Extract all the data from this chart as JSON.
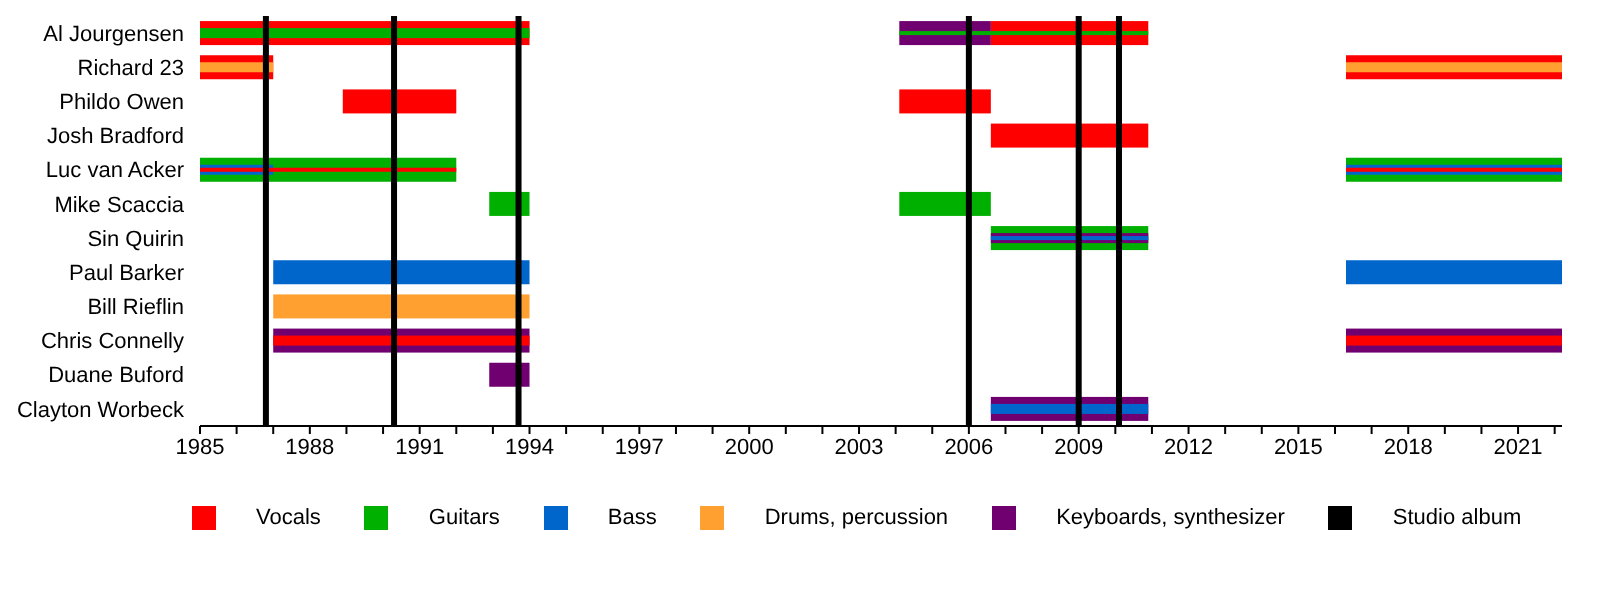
{
  "chart_data": {
    "type": "bar",
    "orientation": "horizontal",
    "legend": "bottom",
    "categories": [
      "Al Jourgensen",
      "Richard 23",
      "Phildo Owen",
      "Josh Bradford",
      "Luc van Acker",
      "Mike Scaccia",
      "Sin Quirin",
      "Paul Barker",
      "Bill Rieflin",
      "Chris Connelly",
      "Duane Buford",
      "Clayton Worbeck"
    ],
    "xlim": [
      1985,
      2022.2
    ],
    "xticks": [
      1985,
      {
        "value": 1986,
        "label": null
      },
      {
        "value": 1987,
        "label": null
      },
      1988,
      {
        "value": 1989,
        "label": null
      },
      {
        "value": 1990,
        "label": null
      },
      1991,
      {
        "value": 1992,
        "label": null
      },
      {
        "value": 1993,
        "label": null
      },
      1994,
      {
        "value": 1995,
        "label": null
      },
      {
        "value": 1996,
        "label": null
      },
      1997,
      {
        "value": 1998,
        "label": null
      },
      {
        "value": 1999,
        "label": null
      },
      2000,
      {
        "value": 2001,
        "label": null
      },
      {
        "value": 2002,
        "label": null
      },
      2003,
      {
        "value": 2004,
        "label": null
      },
      {
        "value": 2005,
        "label": null
      },
      2006,
      {
        "value": 2007,
        "label": null
      },
      {
        "value": 2008,
        "label": null
      },
      2009,
      {
        "value": 2010,
        "label": null
      },
      {
        "value": 2011,
        "label": null
      },
      2012,
      {
        "value": 2013,
        "label": null
      },
      {
        "value": 2014,
        "label": null
      },
      2015,
      {
        "value": 2016,
        "label": null
      },
      {
        "value": 2017,
        "label": null
      },
      2018,
      {
        "value": 2019,
        "label": null
      },
      {
        "value": 2020,
        "label": null
      },
      2021,
      {
        "value": 2022,
        "label": null
      }
    ],
    "series": [
      {
        "name": "Vocals",
        "color": "#ff0000",
        "base": [
          1985,
          1985,
          1988.9,
          2006.6,
          null,
          null,
          null,
          null,
          null,
          null,
          null,
          null
        ],
        "values": [
          9.0,
          2.0,
          3.1,
          4.3,
          null,
          null,
          null,
          null,
          null,
          null,
          null,
          null
        ]
      },
      {
        "color": "#ff0000",
        "base": [
          2006.6,
          2016.3,
          2004.1,
          null,
          null,
          null,
          null,
          null,
          null,
          null,
          null,
          null
        ],
        "values": [
          4.3,
          5.9,
          2.5,
          null,
          null,
          null,
          null,
          null,
          null,
          null,
          null,
          null
        ]
      },
      {
        "name": "Guitars",
        "color": "#00b000",
        "base": [
          null,
          null,
          null,
          null,
          1985,
          1992.9,
          2006.6,
          null,
          null,
          null,
          null,
          null
        ],
        "values": [
          null,
          null,
          null,
          null,
          7.0,
          1.1,
          4.3,
          null,
          null,
          null,
          null,
          null
        ]
      },
      {
        "color": "#00b000",
        "base": [
          null,
          null,
          null,
          null,
          2016.3,
          2004.1,
          null,
          null,
          null,
          null,
          null,
          null
        ],
        "values": [
          null,
          null,
          null,
          null,
          5.9,
          2.5,
          null,
          null,
          null,
          null,
          null,
          null
        ]
      },
      {
        "name": "Bass",
        "color": "#0066cc",
        "base": [
          null,
          null,
          null,
          null,
          null,
          null,
          null,
          1987,
          null,
          null,
          null,
          null
        ],
        "values": [
          null,
          null,
          null,
          null,
          null,
          null,
          null,
          7.0,
          null,
          null,
          null,
          null
        ]
      },
      {
        "color": "#0066cc",
        "base": [
          null,
          null,
          null,
          null,
          null,
          null,
          null,
          2016.3,
          null,
          null,
          null,
          null
        ],
        "values": [
          null,
          null,
          null,
          null,
          null,
          null,
          null,
          5.9,
          null,
          null,
          null,
          null
        ]
      },
      {
        "name": "Drums, percussion",
        "color": "#ffa030",
        "base": [
          null,
          null,
          null,
          null,
          null,
          null,
          null,
          null,
          1987,
          null,
          null,
          null
        ],
        "values": [
          null,
          null,
          null,
          null,
          null,
          null,
          null,
          null,
          7.0,
          null,
          null,
          null
        ]
      },
      {
        "name": "Keyboards, synthesizer",
        "color": "#700070",
        "base": [
          2004.1,
          null,
          null,
          null,
          null,
          null,
          null,
          null,
          null,
          1987,
          1992.9,
          2006.6
        ],
        "values": [
          2.5,
          null,
          null,
          null,
          null,
          null,
          null,
          null,
          null,
          7.0,
          1.1,
          4.3
        ]
      },
      {
        "color": "#700070",
        "base": [
          null,
          null,
          null,
          null,
          null,
          null,
          null,
          null,
          null,
          2016.3,
          null,
          null
        ],
        "values": [
          null,
          null,
          null,
          null,
          null,
          null,
          null,
          null,
          null,
          5.9,
          null,
          null
        ]
      },
      {
        "color": "#00b000",
        "base": [
          1985,
          null,
          null,
          null,
          null,
          null,
          null,
          null,
          null,
          null,
          null,
          null
        ],
        "values": [
          9.0,
          null,
          null,
          null,
          null,
          null,
          null,
          null,
          null,
          null,
          null,
          null
        ]
      },
      {
        "color": "#00b000",
        "base": [
          2004.1,
          null,
          null,
          null,
          null,
          null,
          null,
          null,
          null,
          null,
          null,
          null
        ],
        "values": [
          6.8,
          null,
          null,
          null,
          null,
          null,
          null,
          null,
          null,
          null,
          null,
          null
        ]
      },
      {
        "color": "#ffa030",
        "base": [
          null,
          1985,
          null,
          null,
          null,
          null,
          null,
          null,
          null,
          null,
          null,
          null
        ],
        "values": [
          null,
          2.0,
          null,
          null,
          null,
          null,
          null,
          null,
          null,
          null,
          null,
          null
        ]
      },
      {
        "color": "#ffa030",
        "base": [
          null,
          2016.3,
          null,
          null,
          null,
          null,
          null,
          null,
          null,
          null,
          null,
          null
        ],
        "values": [
          null,
          5.9,
          null,
          null,
          null,
          null,
          null,
          null,
          null,
          null,
          null,
          null
        ]
      },
      {
        "color": "#0066cc",
        "base": [
          null,
          null,
          null,
          null,
          1985,
          null,
          null,
          null,
          null,
          null,
          null,
          2006.6
        ],
        "values": [
          null,
          null,
          null,
          null,
          2.0,
          null,
          null,
          null,
          null,
          null,
          null,
          4.3
        ]
      },
      {
        "color": "#0066cc",
        "base": [
          null,
          null,
          null,
          null,
          2016.3,
          null,
          null,
          null,
          null,
          null,
          null,
          null
        ],
        "values": [
          null,
          null,
          null,
          null,
          5.9,
          null,
          null,
          null,
          null,
          null,
          null,
          null
        ]
      },
      {
        "color": "#700070",
        "base": [
          null,
          null,
          null,
          null,
          null,
          null,
          2006.6,
          null,
          null,
          null,
          null,
          null
        ],
        "values": [
          null,
          null,
          null,
          null,
          null,
          null,
          4.3,
          null,
          null,
          null,
          null,
          null
        ]
      },
      {
        "color": "#ff0000",
        "base": [
          null,
          null,
          null,
          null,
          1985,
          null,
          null,
          null,
          null,
          1987,
          null,
          null
        ],
        "values": [
          null,
          null,
          null,
          null,
          7.0,
          null,
          null,
          null,
          null,
          7.0,
          null,
          null
        ]
      },
      {
        "color": "#ff0000",
        "base": [
          null,
          null,
          null,
          null,
          2016.3,
          null,
          null,
          null,
          null,
          2016.3,
          null,
          null
        ],
        "values": [
          null,
          null,
          null,
          null,
          5.9,
          null,
          null,
          null,
          null,
          5.9,
          null,
          null
        ]
      },
      {
        "color": "#0066cc",
        "base": [
          null,
          null,
          null,
          null,
          null,
          null,
          2006.6,
          null,
          null,
          null,
          null,
          null
        ],
        "values": [
          null,
          null,
          null,
          null,
          null,
          null,
          4.3,
          null,
          null,
          null,
          null,
          null
        ]
      }
    ],
    "ref_lines": [
      {
        "axis": "x",
        "value": 1986.8,
        "label": "Studio album",
        "color": "#000000"
      },
      {
        "axis": "x",
        "value": 1990.3,
        "color": "#000000"
      },
      {
        "axis": "x",
        "value": 1993.7,
        "color": "#000000"
      },
      {
        "axis": "x",
        "value": 2006.0,
        "color": "#000000"
      },
      {
        "axis": "x",
        "value": 2009.0,
        "color": "#000000"
      },
      {
        "axis": "x",
        "value": 2010.1,
        "color": "#000000"
      }
    ]
  }
}
